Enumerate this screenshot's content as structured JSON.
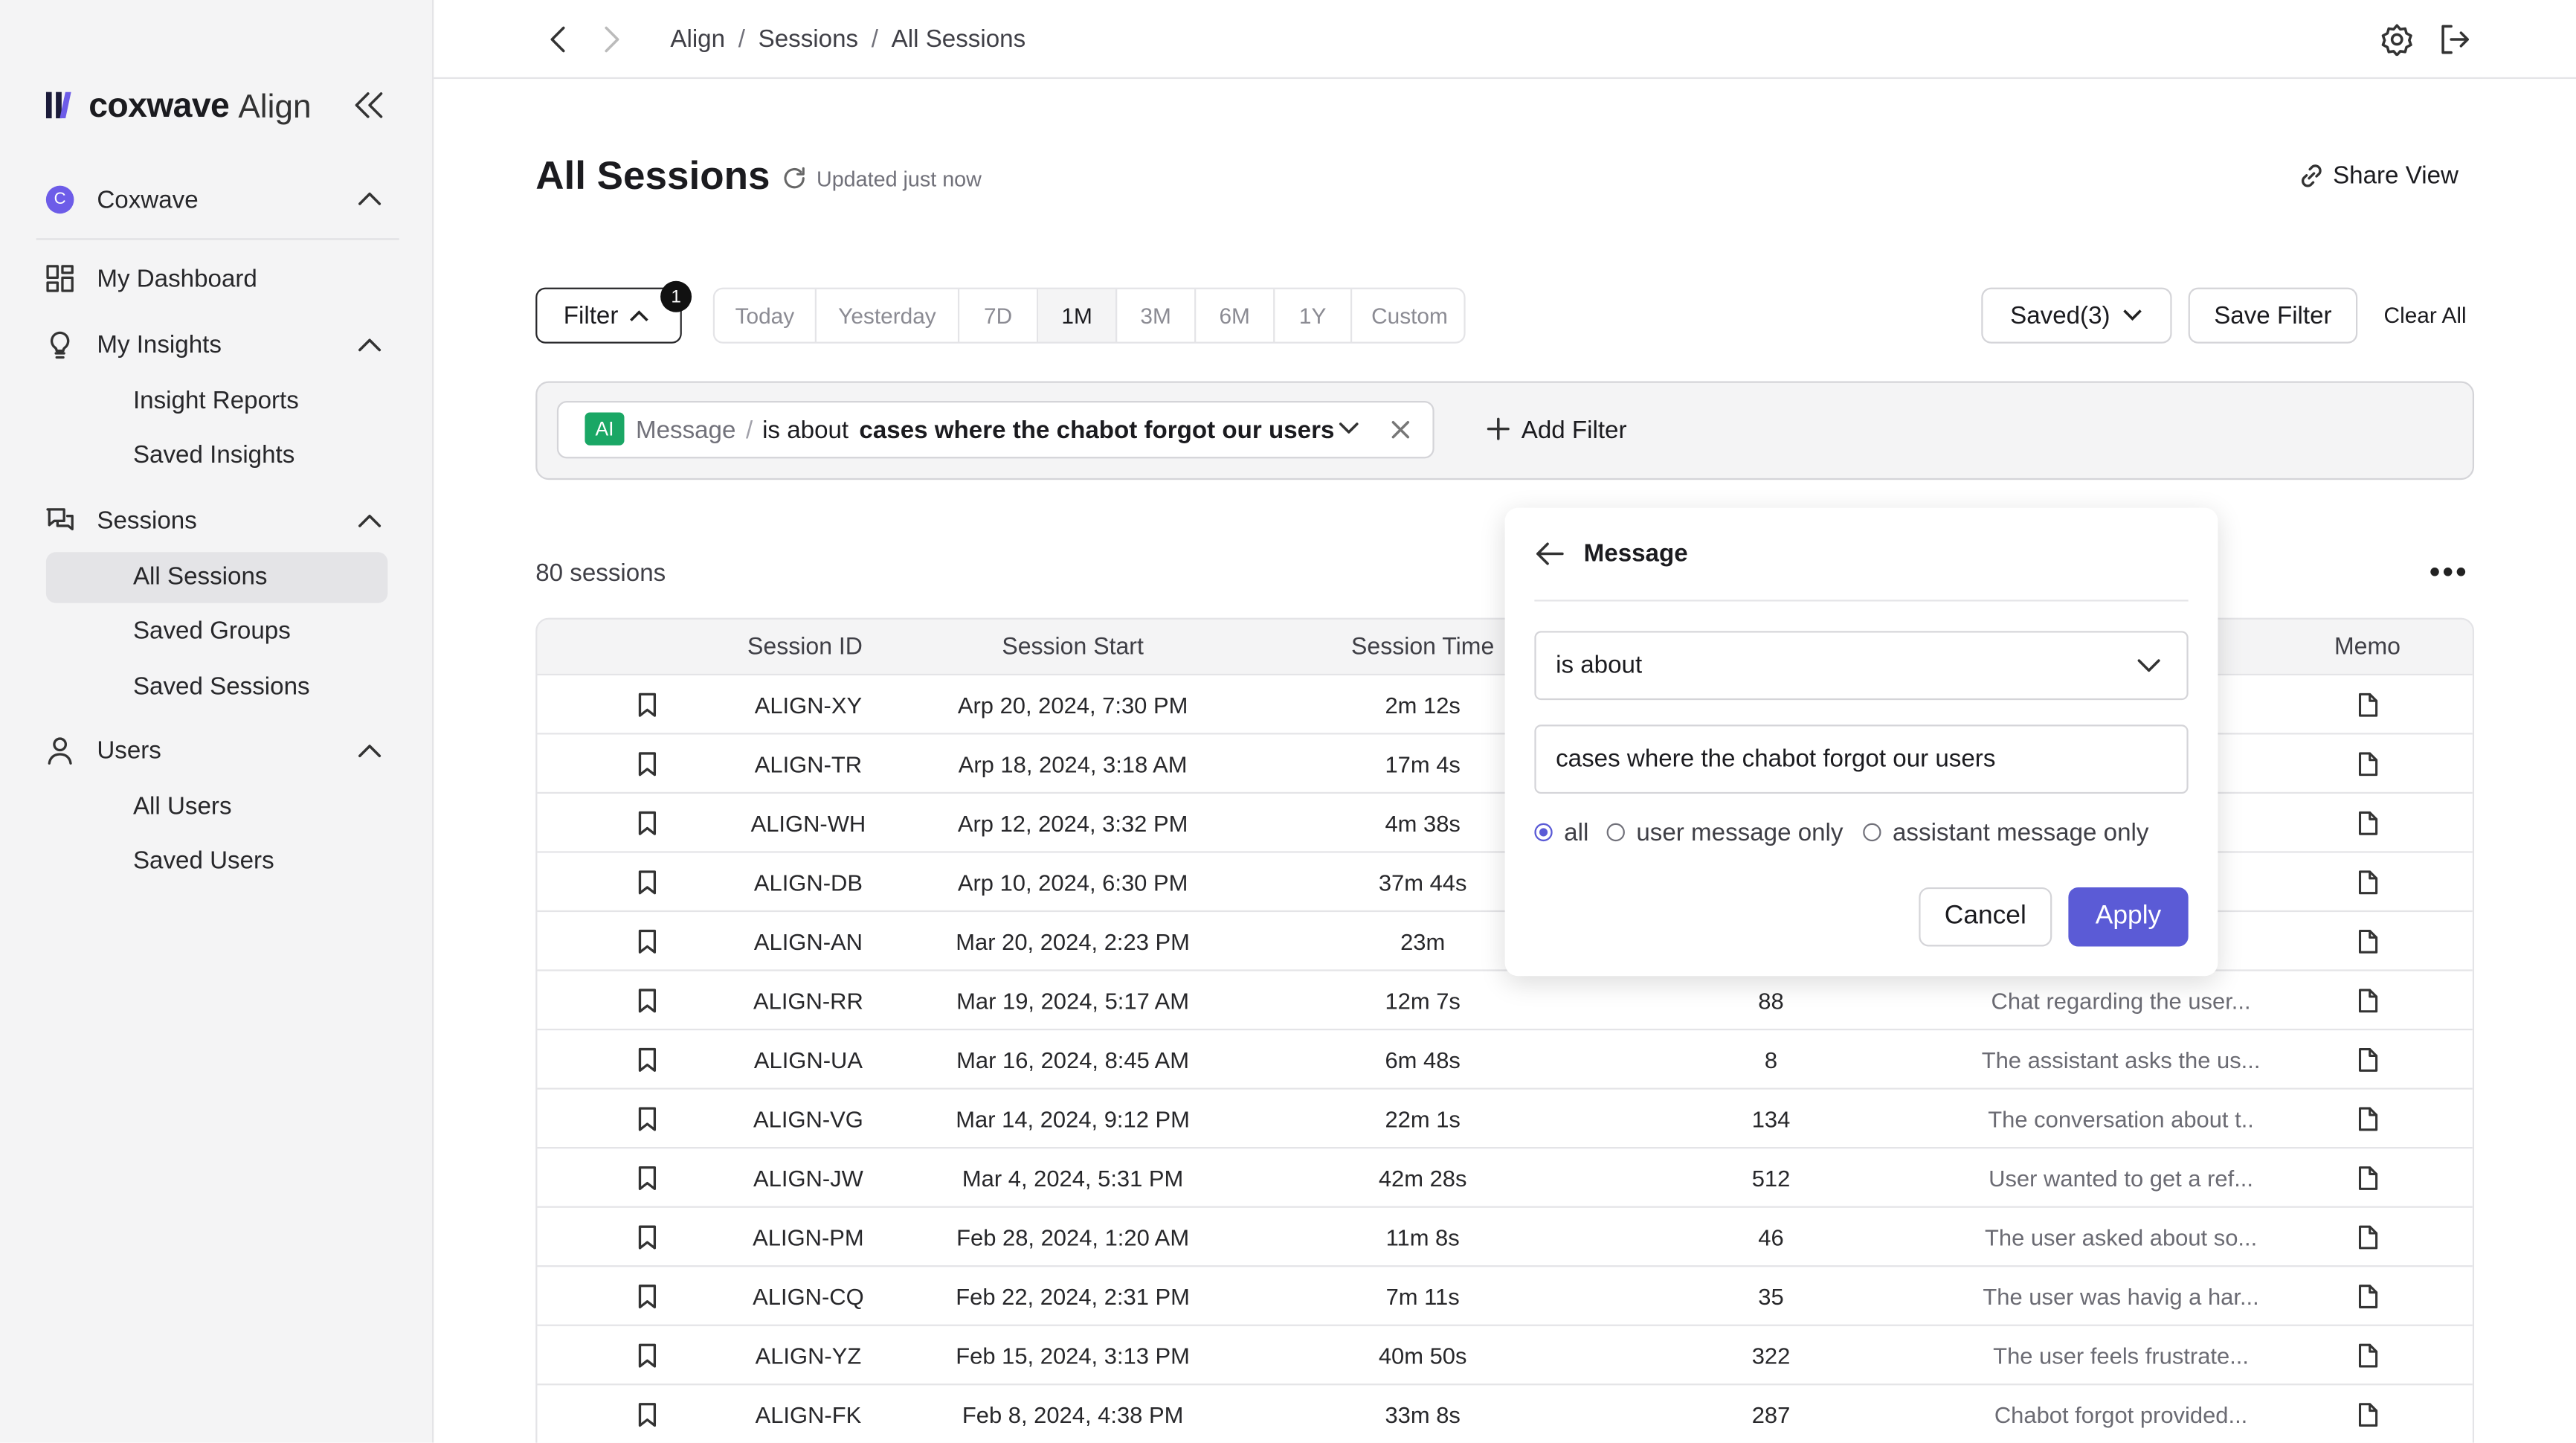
{
  "sidebar": {
    "logo": {
      "brand": "coxwave",
      "product": "Align"
    },
    "org": {
      "initial": "C",
      "name": "Coxwave"
    },
    "nav": [
      {
        "label": "My Dashboard",
        "children": []
      },
      {
        "label": "My Insights",
        "children": [
          "Insight Reports",
          "Saved Insights"
        ]
      },
      {
        "label": "Sessions",
        "children": [
          "All Sessions",
          "Saved Groups",
          "Saved Sessions"
        ]
      },
      {
        "label": "Users",
        "children": [
          "All Users",
          "Saved Users"
        ]
      }
    ]
  },
  "header": {
    "breadcrumb": [
      "Align",
      "Sessions",
      "All Sessions"
    ],
    "separator": "/"
  },
  "page": {
    "title": "All Sessions",
    "updated": "Updated just now",
    "share": "Share View"
  },
  "toolbar": {
    "filter": "Filter",
    "filter_count": "1",
    "ranges": [
      "Today",
      "Yesterday",
      "7D",
      "1M",
      "3M",
      "6M",
      "1Y",
      "Custom"
    ],
    "selected_range": "1M",
    "saved": "Saved(3)",
    "save_filter": "Save Filter",
    "clear_all": "Clear All"
  },
  "filter_chip": {
    "badge": "AI",
    "field": "Message",
    "separator": "/",
    "operator": "is about",
    "value": "cases where the chabot forgot our users",
    "add": "Add Filter"
  },
  "count": "80 sessions",
  "table": {
    "columns": [
      "Session ID",
      "Session Start",
      "Session Time",
      "Memo"
    ],
    "rows": [
      {
        "id": "ALIGN-XY",
        "start": "Arp 20, 2024, 7:30 PM",
        "time": "2m 12s"
      },
      {
        "id": "ALIGN-TR",
        "start": "Arp 18, 2024, 3:18 AM",
        "time": "17m 4s"
      },
      {
        "id": "ALIGN-WH",
        "start": "Arp 12, 2024, 3:32 PM",
        "time": "4m 38s"
      },
      {
        "id": "ALIGN-DB",
        "start": "Arp 10, 2024, 6:30 PM",
        "time": "37m 44s"
      },
      {
        "id": "ALIGN-AN",
        "start": "Mar 20, 2024, 2:23 PM",
        "time": "23m"
      },
      {
        "id": "ALIGN-RR",
        "start": "Mar 19, 2024, 5:17 AM",
        "time": "12m 7s",
        "count": "88",
        "summary": "Chat regarding the user..."
      },
      {
        "id": "ALIGN-UA",
        "start": "Mar 16, 2024, 8:45 AM",
        "time": "6m 48s",
        "count": "8",
        "summary": "The assistant asks the us..."
      },
      {
        "id": "ALIGN-VG",
        "start": "Mar 14, 2024, 9:12 PM",
        "time": "22m 1s",
        "count": "134",
        "summary": "The conversation about t.."
      },
      {
        "id": "ALIGN-JW",
        "start": "Mar 4, 2024, 5:31 PM",
        "time": "42m 28s",
        "count": "512",
        "summary": "User wanted to get a ref..."
      },
      {
        "id": "ALIGN-PM",
        "start": "Feb 28, 2024, 1:20 AM",
        "time": "11m 8s",
        "count": "46",
        "summary": "The user asked about so..."
      },
      {
        "id": "ALIGN-CQ",
        "start": "Feb 22, 2024, 2:31 PM",
        "time": "7m 11s",
        "count": "35",
        "summary": "The user was havig a har..."
      },
      {
        "id": "ALIGN-YZ",
        "start": "Feb 15, 2024, 3:13 PM",
        "time": "40m 50s",
        "count": "322",
        "summary": "The user feels frustrate..."
      },
      {
        "id": "ALIGN-FK",
        "start": "Feb 8, 2024, 4:38 PM",
        "time": "33m 8s",
        "count": "287",
        "summary": "Chabot forgot provided..."
      }
    ]
  },
  "popup": {
    "title": "Message",
    "operator": "is about",
    "value": "cases where the chabot forgot our users",
    "scopes": [
      "all",
      "user message only",
      "assistant message only"
    ],
    "selected_scope": "all",
    "cancel": "Cancel",
    "apply": "Apply"
  }
}
